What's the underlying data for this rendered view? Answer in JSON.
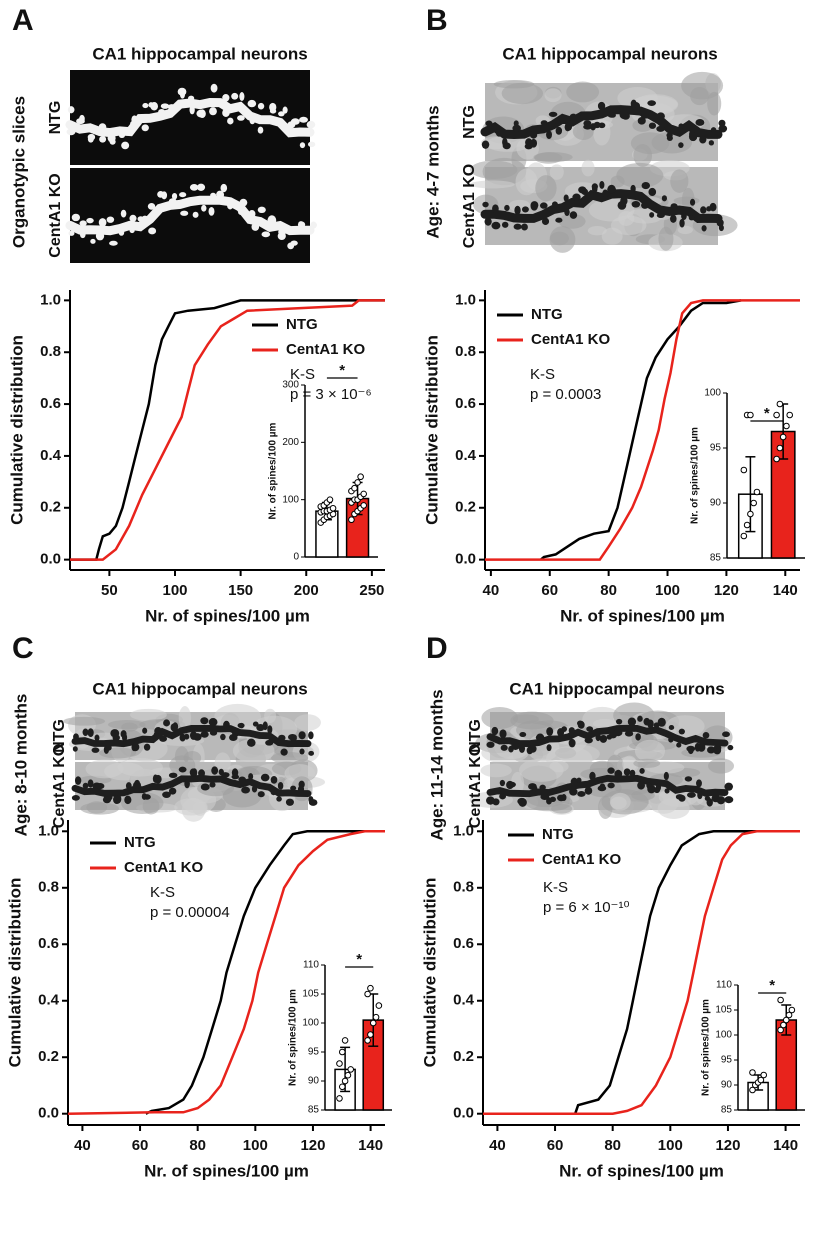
{
  "panels": [
    {
      "letter": "A",
      "heading": "CA1 hippocampal neurons",
      "side_label": "Organotypic slices",
      "image_labels": [
        "NTG",
        "CentA1 KO"
      ]
    },
    {
      "letter": "B",
      "heading": "CA1 hippocampal neurons",
      "side_label": "Age: 4-7 months",
      "image_labels": [
        "NTG",
        "CentA1 KO"
      ]
    },
    {
      "letter": "C",
      "heading": "CA1 hippocampal neurons",
      "side_label": "Age: 8-10 months",
      "image_labels": [
        "NTG",
        "CentA1 KO"
      ]
    },
    {
      "letter": "D",
      "heading": "CA1 hippocampal neurons",
      "side_label": "Age: 11-14 months",
      "image_labels": [
        "NTG",
        "CentA1 KO"
      ]
    }
  ],
  "chart_data": [
    {
      "type": "line",
      "xlabel": "Nr. of spines/100 µm",
      "ylabel": "Cumulative distribution",
      "xlim": [
        20,
        260
      ],
      "xticks": [
        50,
        100,
        150,
        200,
        250
      ],
      "ylim": [
        -0.04,
        1.04
      ],
      "yticks": [
        {
          "value": 0,
          "label": "0.0"
        },
        0.2,
        0.4,
        0.6,
        0.8,
        {
          "value": 1,
          "label": "1.0"
        }
      ],
      "series": [
        {
          "name": "NTG",
          "color": "#000000",
          "x": [
            20,
            40,
            42,
            45,
            50,
            55,
            60,
            65,
            70,
            75,
            80,
            85,
            90,
            95,
            100,
            110,
            130,
            150,
            260
          ],
          "values": [
            0,
            0,
            0.04,
            0.09,
            0.1,
            0.13,
            0.2,
            0.3,
            0.4,
            0.5,
            0.6,
            0.75,
            0.85,
            0.9,
            0.95,
            0.96,
            0.97,
            1.0,
            1.0
          ]
        },
        {
          "name": "CentA1 KO",
          "color": "#e8231c",
          "x": [
            20,
            45,
            55,
            65,
            75,
            85,
            95,
            105,
            110,
            115,
            125,
            135,
            145,
            155,
            235,
            240,
            260
          ],
          "values": [
            0,
            0,
            0.04,
            0.13,
            0.25,
            0.35,
            0.45,
            0.55,
            0.65,
            0.75,
            0.83,
            0.9,
            0.93,
            0.96,
            0.98,
            1.0,
            1.0
          ]
        }
      ],
      "annotations": [
        "K-S",
        "p = 3 × 10⁻⁶"
      ]
    },
    {
      "type": "bar",
      "ylabel": "Nr. of spines/100 µm",
      "categories": [
        null,
        null
      ],
      "values": [
        80,
        102
      ],
      "errors": [
        15,
        28
      ],
      "colors": [
        "#ffffff",
        "#e8231c"
      ],
      "ylim": [
        0,
        300
      ],
      "yticks": [
        0,
        100,
        200,
        300
      ],
      "points": [
        [
          60,
          65,
          70,
          72,
          75,
          78,
          80,
          80,
          82,
          85,
          88,
          90,
          95,
          100
        ],
        [
          65,
          75,
          80,
          85,
          90,
          95,
          100,
          100,
          105,
          110,
          115,
          120,
          130,
          140
        ]
      ],
      "annotations": [
        "*"
      ]
    },
    {
      "type": "line",
      "xlabel": "Nr. of spines/100 µm",
      "ylabel": "Cumulative distribution",
      "xlim": [
        38,
        145
      ],
      "xticks": [
        40,
        60,
        80,
        100,
        120,
        140
      ],
      "ylim": [
        -0.04,
        1.04
      ],
      "yticks": [
        {
          "value": 0,
          "label": "0.0"
        },
        0.2,
        0.4,
        0.6,
        0.8,
        {
          "value": 1,
          "label": "1.0"
        }
      ],
      "series": [
        {
          "name": "NTG",
          "color": "#000000",
          "x": [
            57,
            58,
            62,
            66,
            70,
            75,
            80,
            83,
            85,
            87,
            89,
            91,
            93,
            96,
            100,
            104,
            108,
            112,
            120,
            125
          ],
          "values": [
            0,
            0.01,
            0.02,
            0.05,
            0.08,
            0.1,
            0.11,
            0.2,
            0.3,
            0.4,
            0.5,
            0.6,
            0.7,
            0.78,
            0.85,
            0.9,
            0.96,
            0.99,
            0.99,
            1.0
          ]
        },
        {
          "name": "CentA1 KO",
          "color": "#e8231c",
          "x": [
            38,
            77,
            80,
            84,
            88,
            91,
            93,
            95,
            97,
            99,
            101,
            103,
            105,
            108,
            112,
            145
          ],
          "values": [
            0,
            0,
            0.05,
            0.12,
            0.2,
            0.28,
            0.35,
            0.42,
            0.5,
            0.62,
            0.72,
            0.85,
            0.95,
            0.99,
            1.0,
            1.0
          ]
        }
      ],
      "annotations": [
        "K-S",
        "p = 0.0003"
      ]
    },
    {
      "type": "bar",
      "ylabel": "Nr. of spines/100 µm",
      "categories": [
        null,
        null
      ],
      "values": [
        90.8,
        96.5
      ],
      "errors": [
        3.4,
        2.5
      ],
      "colors": [
        "#ffffff",
        "#e8231c"
      ],
      "ylim": [
        85,
        100
      ],
      "yticks": [
        85,
        90,
        95,
        100
      ],
      "points": [
        [
          87,
          88,
          89,
          90,
          91,
          93,
          98,
          98
        ],
        [
          94,
          95,
          96,
          97,
          98,
          98,
          99
        ]
      ],
      "annotations": [
        "*"
      ]
    },
    {
      "type": "line",
      "xlabel": "Nr. of spines/100 µm",
      "ylabel": "Cumulative distribution",
      "xlim": [
        35,
        145
      ],
      "xticks": [
        40,
        60,
        80,
        100,
        120,
        140
      ],
      "ylim": [
        -0.04,
        1.04
      ],
      "yticks": [
        {
          "value": 0,
          "label": "0.0"
        },
        0.2,
        0.4,
        0.6,
        0.8,
        {
          "value": 1,
          "label": "1.0"
        }
      ],
      "series": [
        {
          "name": "NTG",
          "color": "#000000",
          "x": [
            62,
            64,
            70,
            75,
            78,
            82,
            85,
            88,
            90,
            93,
            96,
            100,
            105,
            110,
            113,
            118,
            145
          ],
          "values": [
            0,
            0.01,
            0.02,
            0.05,
            0.1,
            0.2,
            0.3,
            0.4,
            0.5,
            0.6,
            0.7,
            0.8,
            0.88,
            0.95,
            0.99,
            1.0,
            1.0
          ]
        },
        {
          "name": "CentA1 KO",
          "color": "#e8231c",
          "x": [
            35,
            65,
            75,
            80,
            84,
            88,
            92,
            96,
            99,
            101,
            104,
            107,
            110,
            115,
            120,
            125,
            133,
            138,
            145
          ],
          "values": [
            0,
            0.005,
            0.005,
            0.02,
            0.05,
            0.1,
            0.2,
            0.3,
            0.4,
            0.5,
            0.6,
            0.7,
            0.8,
            0.88,
            0.93,
            0.97,
            0.99,
            1.0,
            1.0
          ]
        }
      ],
      "annotations": [
        "K-S",
        "p = 0.00004"
      ]
    },
    {
      "type": "bar",
      "ylabel": "Nr. of spines/100 µm",
      "categories": [
        null,
        null
      ],
      "values": [
        92,
        100.5
      ],
      "errors": [
        3.8,
        4.5
      ],
      "colors": [
        "#ffffff",
        "#e8231c"
      ],
      "ylim": [
        85,
        110
      ],
      "yticks": [
        85,
        90,
        95,
        100,
        105,
        110
      ],
      "points": [
        [
          87,
          89,
          90,
          91,
          92,
          93,
          95,
          97
        ],
        [
          97,
          98,
          100,
          101,
          103,
          105,
          106
        ]
      ],
      "annotations": [
        "*"
      ]
    },
    {
      "type": "line",
      "xlabel": "Nr. of spines/100 µm",
      "ylabel": "Cumulative distribution",
      "xlim": [
        35,
        145
      ],
      "xticks": [
        40,
        60,
        80,
        100,
        120,
        140
      ],
      "ylim": [
        -0.04,
        1.04
      ],
      "yticks": [
        {
          "value": 0,
          "label": "0.0"
        },
        0.2,
        0.4,
        0.6,
        0.8,
        {
          "value": 1,
          "label": "1.0"
        }
      ],
      "series": [
        {
          "name": "NTG",
          "color": "#000000",
          "x": [
            67,
            68,
            75,
            79,
            82,
            85,
            87,
            89,
            91,
            93,
            96,
            100,
            104,
            110,
            115,
            130
          ],
          "values": [
            0,
            0.03,
            0.05,
            0.1,
            0.2,
            0.3,
            0.4,
            0.5,
            0.6,
            0.7,
            0.8,
            0.88,
            0.95,
            0.99,
            1.0,
            1.0
          ]
        },
        {
          "name": "CentA1 KO",
          "color": "#e8231c",
          "x": [
            35,
            80,
            85,
            90,
            95,
            100,
            103,
            106,
            108,
            110,
            112,
            115,
            118,
            121,
            125,
            130,
            145
          ],
          "values": [
            0,
            0,
            0.01,
            0.03,
            0.1,
            0.2,
            0.3,
            0.4,
            0.5,
            0.6,
            0.7,
            0.8,
            0.9,
            0.95,
            0.99,
            1.0,
            1.0
          ]
        }
      ],
      "annotations": [
        "K-S",
        "p = 6 × 10⁻¹⁰"
      ]
    },
    {
      "type": "bar",
      "ylabel": "Nr. of spines/100 µm",
      "categories": [
        null,
        null
      ],
      "values": [
        90.5,
        103
      ],
      "errors": [
        1.5,
        3
      ],
      "colors": [
        "#ffffff",
        "#e8231c"
      ],
      "ylim": [
        85,
        110
      ],
      "yticks": [
        85,
        90,
        95,
        100,
        105,
        110
      ],
      "points": [
        [
          89,
          90,
          90.5,
          91,
          92,
          92.5
        ],
        [
          101,
          102,
          103,
          104,
          105,
          107
        ]
      ],
      "annotations": [
        "*"
      ]
    }
  ]
}
